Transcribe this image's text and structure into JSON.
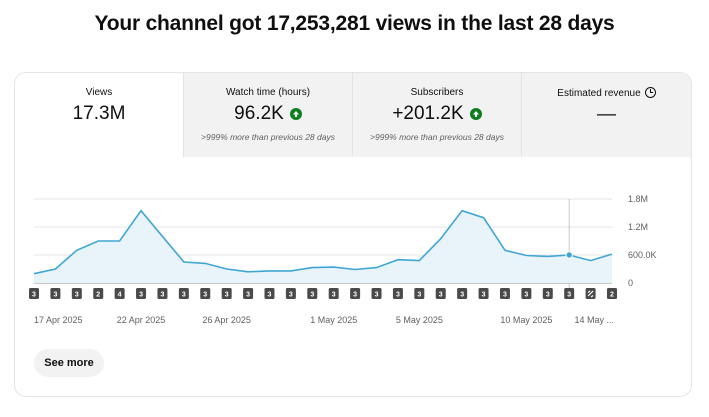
{
  "headline": "Your channel got 17,253,281 views in the last 28 days",
  "tabs": [
    {
      "label": "Views",
      "value": "17.3M",
      "sub": ""
    },
    {
      "label": "Watch time (hours)",
      "value": "96.2K",
      "sub": ">999% more than previous 28 days",
      "trend_icon": "arrow-up-icon"
    },
    {
      "label": "Subscribers",
      "value": "+201.2K",
      "sub": ">999% more than previous 28 days",
      "trend_icon": "arrow-up-icon"
    },
    {
      "label": "Estimated revenue",
      "value": "—",
      "sub": "",
      "info_icon": "clock-icon"
    }
  ],
  "colors": {
    "line": "#3ea6d3",
    "fill": "#e8f4fa",
    "trend_up": "#0e7f1e",
    "marker_bg": "#4a4a4a"
  },
  "chart_data": {
    "type": "area",
    "title": "",
    "xlabel": "",
    "ylabel": "",
    "ylim": [
      0,
      1800000
    ],
    "y_ticks": [
      0,
      600000,
      1200000,
      1800000
    ],
    "y_tick_labels": [
      "0",
      "600.0K",
      "1.2M",
      "1.8M"
    ],
    "x_tick_labels": [
      {
        "index": 0,
        "label": "17 Apr 2025"
      },
      {
        "index": 5,
        "label": "22 Apr 2025"
      },
      {
        "index": 9,
        "label": "26 Apr 2025"
      },
      {
        "index": 14,
        "label": "1 May 2025"
      },
      {
        "index": 18,
        "label": "5 May 2025"
      },
      {
        "index": 23,
        "label": "10 May 2025"
      },
      {
        "index": 27,
        "label": "14 May ..."
      }
    ],
    "highlight_index": 25,
    "series": [
      {
        "values": [
          200000,
          300000,
          700000,
          900000,
          900000,
          1550000,
          1000000,
          450000,
          420000,
          300000,
          240000,
          260000,
          260000,
          330000,
          340000,
          290000,
          330000,
          500000,
          480000,
          950000,
          1550000,
          1400000,
          700000,
          590000,
          570000,
          600000,
          480000,
          620000
        ]
      }
    ],
    "markers": [
      "3",
      "3",
      "3",
      "2",
      "4",
      "3",
      "3",
      "3",
      "3",
      "3",
      "3",
      "3",
      "3",
      "3",
      "3",
      "3",
      "3",
      "3",
      "3",
      "3",
      "3",
      "3",
      "3",
      "3",
      "3",
      "3",
      "sync-icon",
      "2"
    ]
  },
  "see_more": "See more"
}
